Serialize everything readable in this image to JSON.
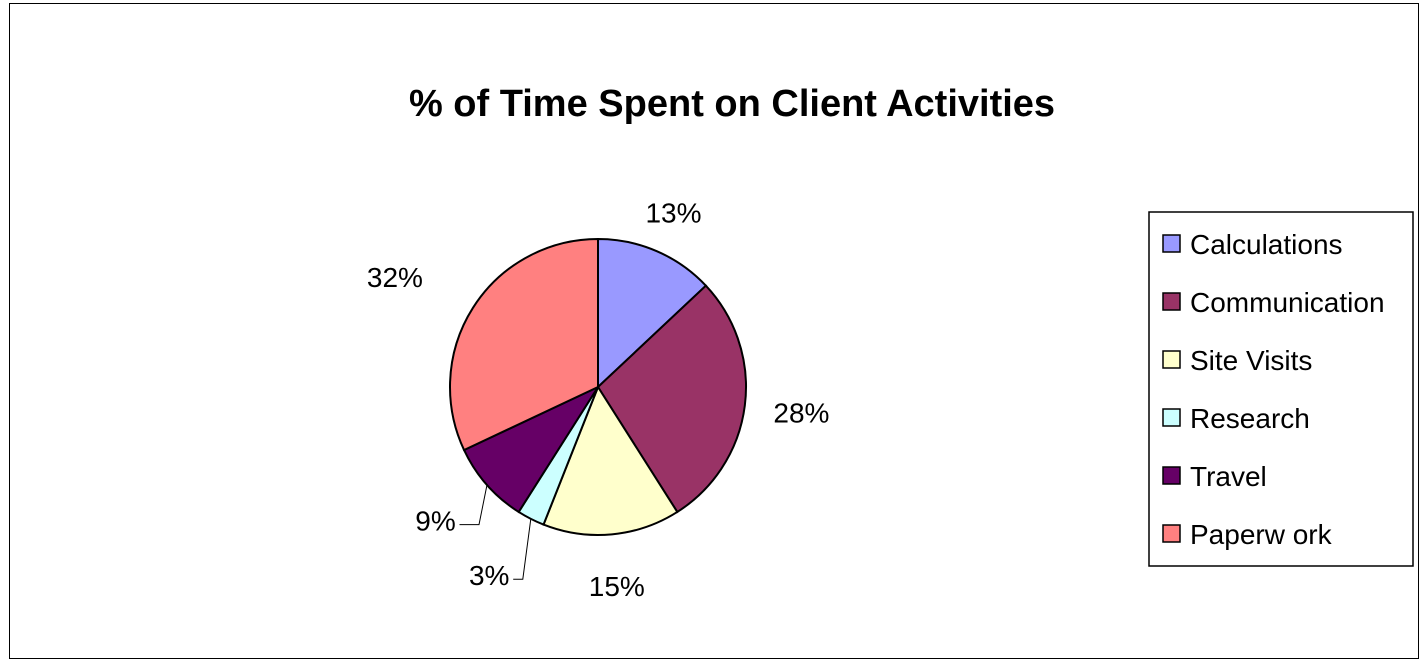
{
  "chart_data": {
    "type": "pie",
    "title": "% of Time Spent on Client Activities",
    "categories": [
      "Calculations",
      "Communication",
      "Site Visits",
      "Research",
      "Travel",
      "Paperw ork"
    ],
    "values": [
      13,
      28,
      15,
      3,
      9,
      32
    ],
    "value_labels": [
      "13%",
      "28%",
      "15%",
      "3%",
      "9%",
      "32%"
    ],
    "colors": [
      "#9999FF",
      "#993366",
      "#FFFFCC",
      "#CCFFFF",
      "#660066",
      "#FF8080"
    ],
    "start_angle": "12 o'clock",
    "direction": "clockwise",
    "legend": {
      "position": "right",
      "entries": [
        "Calculations",
        "Communication",
        "Site Visits",
        "Research",
        "Travel",
        "Paperw ork"
      ]
    }
  }
}
